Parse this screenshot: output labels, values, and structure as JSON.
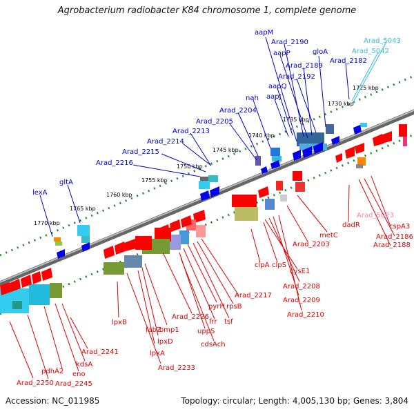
{
  "title": "Agrobacterium radiobacter K84 chromosome 1, complete genome",
  "footer": {
    "accession": "Accession: NC_011985",
    "topology": "Topology: circular; Length: 4,005,130 bp; Genes: 3,804"
  },
  "colors": {
    "forward": "#0000cc",
    "reverse": "#dd0000",
    "forward_pseudo": "#33bbdd",
    "reverse_pseudo": "#ee88aa",
    "backbone": "#888888",
    "tick": "#228822"
  },
  "ruler_labels": [
    "1725 kbp",
    "1730 kbp",
    "1735 kbp",
    "1740 kbp",
    "1745 kbp",
    "1750 kbp",
    "1755 kbp",
    "1760 kbp",
    "1765 kbp",
    "1770 kbp"
  ],
  "forward_labels": [
    "Arad_5043",
    "Arad_5042",
    "aapM",
    "Arad_2190",
    "aapP",
    "gloA",
    "Arad_2189",
    "Arad_2182",
    "Arad_2192",
    "aapQ",
    "aapJ",
    "nah",
    "Arad_2204",
    "Arad_2205",
    "Arad_2213",
    "Arad_2214",
    "Arad_2215",
    "Arad_2216",
    "lexA",
    "gltA"
  ],
  "reverse_labels": [
    "Arad_5023",
    "cspA3",
    "Arad_2186",
    "Arad_2188",
    "dadR",
    "metC",
    "Arad_2203",
    "clpA",
    "clpS",
    "cysE1",
    "Arad_2208",
    "Arad_2209",
    "Arad_2210",
    "Arad_2217",
    "rpsB",
    "tsf",
    "pyrH",
    "frr",
    "uppS",
    "cdsAch",
    "Arad_2226",
    "omp1",
    "fabZ",
    "lpxD",
    "lpxA",
    "lpxB",
    "Arad_2233",
    "Arad_2241",
    "kdsA",
    "eno",
    "pdhA2",
    "Arad_2245",
    "Arad_2250"
  ]
}
